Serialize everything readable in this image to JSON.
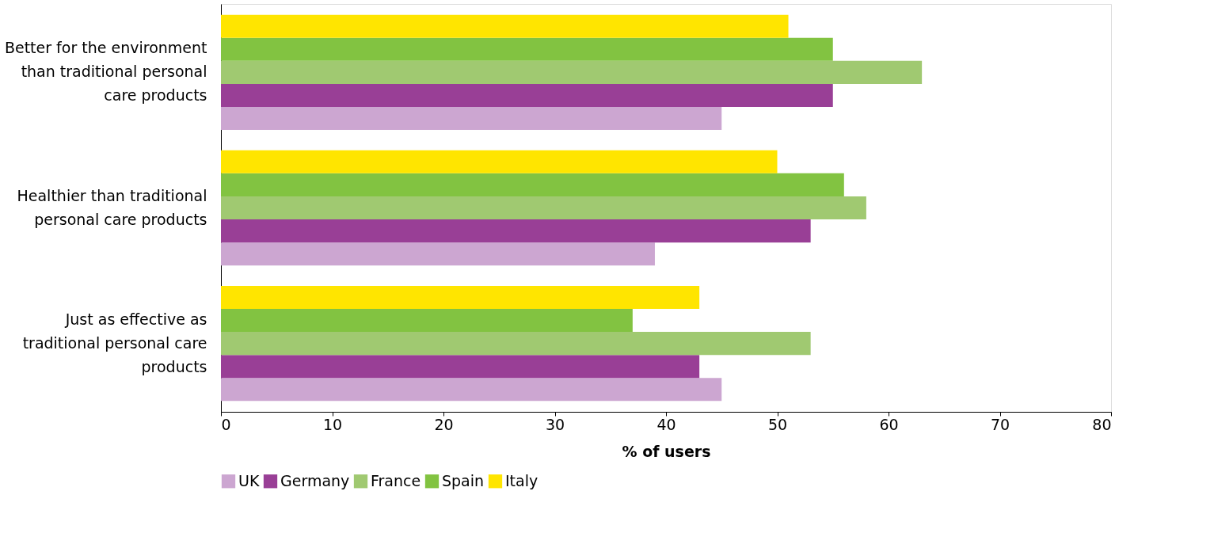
{
  "chart_data": {
    "type": "bar",
    "orientation": "horizontal",
    "xlabel": "% of users",
    "categories": [
      "Better for the environment than traditional personal care products",
      "Healthier than traditional personal care products",
      "Just as effective as traditional personal care products"
    ],
    "series": [
      {
        "name": "UK",
        "color": "#cca6d1",
        "values": [
          45,
          39,
          45
        ]
      },
      {
        "name": "Germany",
        "color": "#993f96",
        "values": [
          55,
          53,
          43
        ]
      },
      {
        "name": "France",
        "color": "#a0c971",
        "values": [
          63,
          58,
          53
        ]
      },
      {
        "name": "Spain",
        "color": "#82c341",
        "values": [
          55,
          56,
          37
        ]
      },
      {
        "name": "Italy",
        "color": "#ffe500",
        "values": [
          51,
          50,
          43
        ]
      }
    ],
    "xlim": [
      0,
      80
    ],
    "xticks": [
      0,
      10,
      20,
      30,
      40,
      50,
      60,
      70,
      80
    ],
    "grid": false,
    "legend": "bottom"
  }
}
